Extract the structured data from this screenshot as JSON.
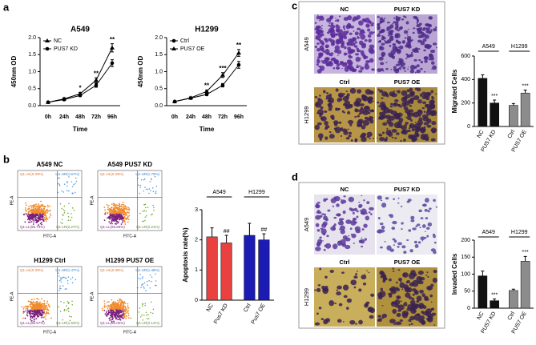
{
  "panel_labels": [
    "a",
    "b",
    "c",
    "d"
  ],
  "chart_data": [
    {
      "type": "line",
      "title": "A549",
      "x_label": "Time",
      "y_label": "450nm OD",
      "categories": [
        "0h",
        "24h",
        "48h",
        "72h",
        "96h"
      ],
      "series": [
        {
          "name": "NC",
          "color": "#000000",
          "marker": "triangle",
          "values": [
            0.1,
            0.2,
            0.35,
            0.75,
            1.7
          ],
          "errors": [
            0.02,
            0.03,
            0.04,
            0.07,
            0.12
          ]
        },
        {
          "name": "PUS7 KD",
          "color": "#000000",
          "marker": "circle",
          "values": [
            0.1,
            0.18,
            0.3,
            0.6,
            1.25
          ],
          "errors": [
            0.02,
            0.03,
            0.03,
            0.06,
            0.1
          ]
        }
      ],
      "annotations": [
        null,
        null,
        "*",
        "**",
        "**"
      ],
      "ylim": [
        0,
        2
      ],
      "yticks": [
        {
          "value": 0,
          "label": "0.0"
        },
        {
          "value": 0.5,
          "label": "0.5"
        },
        {
          "value": 1,
          "label": "1.0"
        },
        {
          "value": 1.5,
          "label": "1.5"
        },
        {
          "value": 2,
          "label": "2.0"
        }
      ]
    },
    {
      "type": "line",
      "title": "H1299",
      "x_label": "Time",
      "y_label": "450nm OD",
      "categories": [
        "0h",
        "24h",
        "48h",
        "72h",
        "96h"
      ],
      "series": [
        {
          "name": "Ctrl",
          "color": "#000000",
          "marker": "circle",
          "values": [
            0.12,
            0.22,
            0.33,
            0.6,
            1.2
          ],
          "errors": [
            0.02,
            0.03,
            0.03,
            0.05,
            0.1
          ]
        },
        {
          "name": "PUS7 OE",
          "color": "#000000",
          "marker": "triangle",
          "values": [
            0.12,
            0.23,
            0.42,
            0.9,
            1.55
          ],
          "errors": [
            0.02,
            0.03,
            0.04,
            0.07,
            0.1
          ]
        }
      ],
      "annotations": [
        null,
        null,
        "**",
        "***",
        "**"
      ],
      "ylim": [
        0,
        2
      ],
      "yticks": [
        {
          "value": 0,
          "label": "0.0"
        },
        {
          "value": 0.5,
          "label": "0.5"
        },
        {
          "value": 1,
          "label": "1.0"
        },
        {
          "value": 1.5,
          "label": "1.5"
        },
        {
          "value": 2,
          "label": "2.0"
        }
      ]
    },
    {
      "type": "bar",
      "y_label": "Apoptosis rate(%)",
      "group_labels": [
        "A549",
        "H1299"
      ],
      "categories": [
        "NC",
        "Pus7 KD",
        "Ctrl",
        "Pus7 OE"
      ],
      "values": [
        2.1,
        1.9,
        2.15,
        2.0
      ],
      "errors": [
        0.3,
        0.25,
        0.4,
        0.2
      ],
      "colors": [
        "#e8413f",
        "#e8413f",
        "#1c1cb5",
        "#1c1cb5"
      ],
      "annotations": [
        null,
        "##",
        null,
        "##"
      ],
      "ylim": [
        0,
        3
      ],
      "yticks": [
        0,
        1,
        2,
        3
      ]
    },
    {
      "type": "bar",
      "y_label": "Migrated Cells",
      "group_labels": [
        "A549",
        "H1299"
      ],
      "categories": [
        "NC",
        "PUS7 KD",
        "Ctrl",
        "PUS7 OE"
      ],
      "values": [
        410,
        200,
        180,
        285
      ],
      "errors": [
        30,
        25,
        15,
        25
      ],
      "colors": [
        "#111111",
        "#111111",
        "#8c8c8c",
        "#8c8c8c"
      ],
      "annotations": [
        null,
        "***",
        null,
        "***"
      ],
      "ylim": [
        0,
        600
      ],
      "yticks": [
        0,
        200,
        400,
        600
      ]
    },
    {
      "type": "bar",
      "y_label": "Invaded Cells",
      "group_labels": [
        "A549",
        "H1299"
      ],
      "categories": [
        "NC",
        "PUS7 KD",
        "Ctrl",
        "PUS7 OE"
      ],
      "values": [
        95,
        22,
        52,
        138
      ],
      "errors": [
        14,
        5,
        4,
        14
      ],
      "colors": [
        "#111111",
        "#111111",
        "#8c8c8c",
        "#8c8c8c"
      ],
      "annotations": [
        null,
        "***",
        null,
        "***"
      ],
      "ylim": [
        0,
        200
      ],
      "yticks": [
        0,
        50,
        100,
        150,
        200
      ]
    }
  ],
  "flow_cytometry": {
    "x_label": "FITC-A",
    "y_label": "PE-A",
    "plots": [
      {
        "title": "A549 NC",
        "quadrants": [
          "Q1-UL(0.33%)",
          "Q1-UR(1.67%)",
          "Q1-LL(95.73%)",
          "Q1-LR(2.27%)"
        ]
      },
      {
        "title": "A549 PUS7 KD",
        "quadrants": [
          "Q1-UL(0.33%)",
          "Q1-UR(1.78%)",
          "Q1-LL(95.69%)",
          "Q1-LR(2.21%)"
        ]
      },
      {
        "title": "H1299 Ctrl",
        "quadrants": [
          "Q1-UL(0.33%)",
          "Q1-UR(1.47%)",
          "Q1-LL(96.57%)",
          "Q1-LR(1.63%)"
        ]
      },
      {
        "title": "H1299 PUS7 OE",
        "quadrants": [
          "Q1-UL(0.36%)",
          "Q1-UR(1.48%)",
          "Q1-LL(96.02%)",
          "Q1-LR(2.14%)"
        ]
      }
    ]
  },
  "migration": {
    "columns": [
      [
        "NC",
        "PUS7 KD"
      ],
      [
        "Ctrl",
        "PUS7 OE"
      ]
    ],
    "rows": [
      "A549",
      "H1299"
    ]
  },
  "invasion": {
    "columns": [
      [
        "NC",
        "PUS7 KD"
      ],
      [
        "Ctrl",
        "PUS7 OE"
      ]
    ],
    "rows": [
      "A549",
      "H1299"
    ]
  }
}
